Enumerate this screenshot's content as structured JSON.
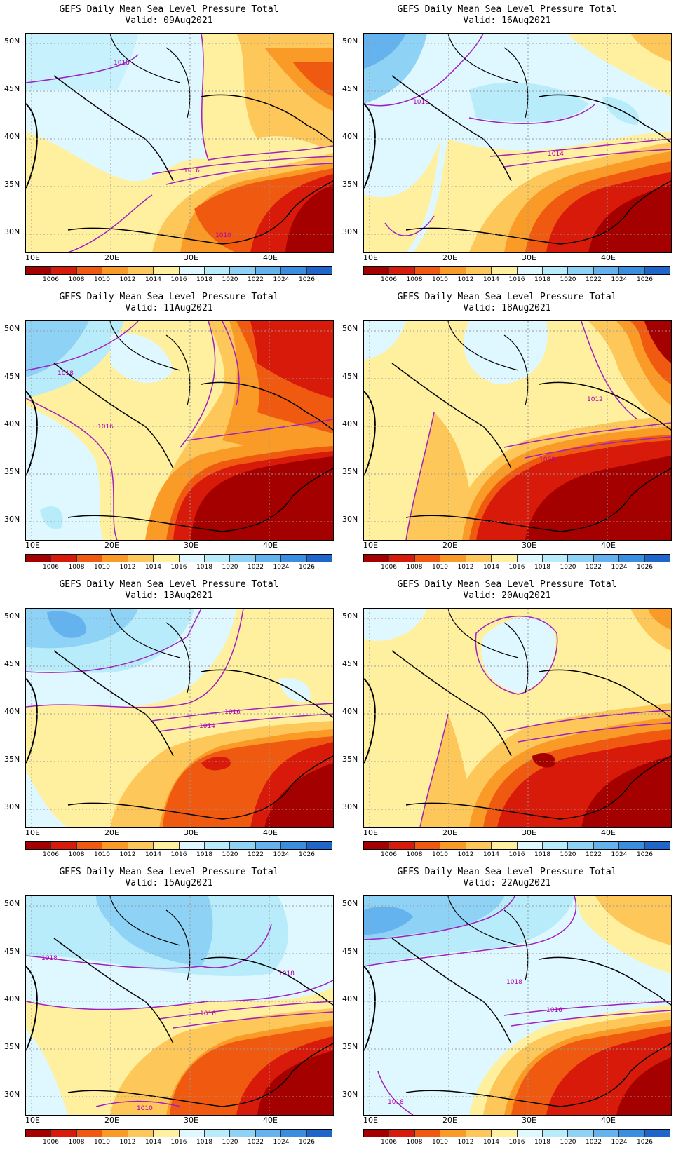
{
  "common": {
    "title": "GEFS Daily Mean Sea Level Pressure Total",
    "lat_labels": [
      "50N",
      "45N",
      "40N",
      "35N",
      "30N"
    ],
    "lon_labels": [
      "10E",
      "20E",
      "30E",
      "40E"
    ],
    "colorbar_labels": [
      "1006",
      "1008",
      "1010",
      "1012",
      "1014",
      "1016",
      "1018",
      "1020",
      "1022",
      "1024",
      "1026"
    ],
    "colorbar_colors": [
      "#a50000",
      "#d81a0a",
      "#f05a10",
      "#fa9b28",
      "#fdc75a",
      "#fff0a0",
      "#dff7ff",
      "#b8ecfa",
      "#8ed3f6",
      "#64b3ef",
      "#3a8ee2",
      "#1f66cc"
    ],
    "contour_color": "#a020c0"
  },
  "panels": [
    {
      "valid": "Valid: 09Aug2021",
      "contour_labels": [
        "1018",
        "1016",
        "1010"
      ]
    },
    {
      "valid": "Valid: 16Aug2021",
      "contour_labels": [
        "1018",
        "1014"
      ]
    },
    {
      "valid": "Valid: 11Aug2021",
      "contour_labels": [
        "1018",
        "1016"
      ]
    },
    {
      "valid": "Valid: 18Aug2021",
      "contour_labels": [
        "1012",
        "1008"
      ]
    },
    {
      "valid": "Valid: 13Aug2021",
      "contour_labels": [
        "1016",
        "1014"
      ]
    },
    {
      "valid": "Valid: 20Aug2021",
      "contour_labels": []
    },
    {
      "valid": "Valid: 15Aug2021",
      "contour_labels": [
        "1018",
        "1018",
        "1016",
        "1010"
      ]
    },
    {
      "valid": "Valid: 22Aug2021",
      "contour_labels": [
        "1018",
        "1016",
        "1018"
      ]
    }
  ]
}
